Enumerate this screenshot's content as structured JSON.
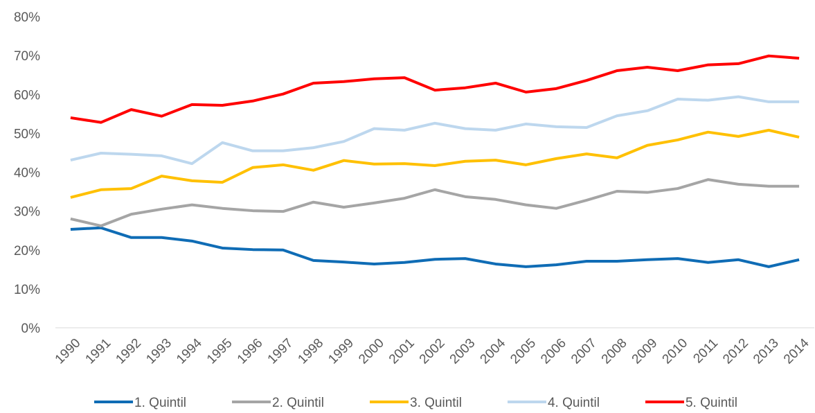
{
  "chart_data": {
    "type": "line",
    "categories": [
      "1990",
      "1991",
      "1992",
      "1993",
      "1994",
      "1995",
      "1996",
      "1997",
      "1998",
      "1999",
      "2000",
      "2001",
      "2002",
      "2003",
      "2004",
      "2005",
      "2006",
      "2007",
      "2008",
      "2009",
      "2010",
      "2011",
      "2012",
      "2013",
      "2014"
    ],
    "series": [
      {
        "name": "1. Quintil",
        "color": "#0f6cb5",
        "values": [
          25.3,
          25.7,
          23.2,
          23.2,
          22.3,
          20.5,
          20.1,
          20.0,
          17.3,
          16.9,
          16.4,
          16.8,
          17.6,
          17.8,
          16.4,
          15.7,
          16.2,
          17.1,
          17.1,
          17.5,
          17.8,
          16.8,
          17.5,
          15.7,
          17.5
        ]
      },
      {
        "name": "2. Quintil",
        "color": "#a5a5a5",
        "values": [
          28.0,
          26.2,
          29.2,
          30.5,
          31.6,
          30.7,
          30.1,
          29.9,
          32.3,
          31.0,
          32.1,
          33.3,
          35.5,
          33.7,
          33.0,
          31.6,
          30.7,
          32.8,
          35.1,
          34.8,
          35.8,
          38.1,
          36.9,
          36.4,
          36.4
        ]
      },
      {
        "name": "3. Quintil",
        "color": "#ffc000",
        "values": [
          33.5,
          35.5,
          35.8,
          39.0,
          37.8,
          37.4,
          41.2,
          41.9,
          40.5,
          43.0,
          42.1,
          42.2,
          41.7,
          42.8,
          43.1,
          41.9,
          43.5,
          44.7,
          43.7,
          46.9,
          48.3,
          50.3,
          49.2,
          50.8,
          49.0
        ]
      },
      {
        "name": "4. Quintil",
        "color": "#bdd7ee",
        "values": [
          43.1,
          44.9,
          44.6,
          44.2,
          42.2,
          47.6,
          45.5,
          45.5,
          46.3,
          47.9,
          51.2,
          50.8,
          52.6,
          51.2,
          50.8,
          52.4,
          51.7,
          51.5,
          54.5,
          55.8,
          58.8,
          58.5,
          59.4,
          58.1,
          58.1
        ]
      },
      {
        "name": "5. Quintil",
        "color": "#ff0000",
        "values": [
          54.0,
          52.8,
          56.1,
          54.4,
          57.4,
          57.2,
          58.3,
          60.1,
          62.9,
          63.3,
          64.0,
          64.3,
          61.1,
          61.7,
          62.9,
          60.6,
          61.5,
          63.6,
          66.1,
          67.0,
          66.1,
          67.6,
          67.9,
          69.9,
          69.3
        ]
      }
    ],
    "ylim": [
      0,
      80
    ],
    "yticks": [
      {
        "value": 0,
        "label": "0%"
      },
      {
        "value": 10,
        "label": "10%"
      },
      {
        "value": 20,
        "label": "20%"
      },
      {
        "value": 30,
        "label": "30%"
      },
      {
        "value": 40,
        "label": "40%"
      },
      {
        "value": 50,
        "label": "50%"
      },
      {
        "value": 60,
        "label": "60%"
      },
      {
        "value": 70,
        "label": "70%"
      },
      {
        "value": 80,
        "label": "80%"
      }
    ],
    "grid": false,
    "legend": "bottom"
  }
}
